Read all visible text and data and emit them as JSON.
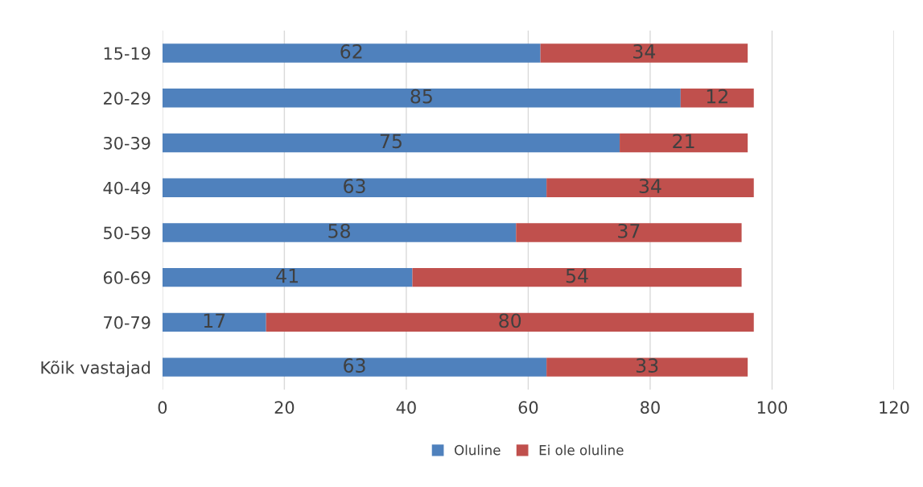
{
  "chart_data": {
    "type": "bar",
    "orientation": "horizontal",
    "stacked": true,
    "categories": [
      "15-19",
      "20-29",
      "30-39",
      "40-49",
      "50-59",
      "60-69",
      "70-79",
      "Kõik vastajad"
    ],
    "series": [
      {
        "name": "Oluline",
        "color": "#4f81bd",
        "values": [
          62,
          85,
          75,
          63,
          58,
          41,
          17,
          63
        ]
      },
      {
        "name": "Ei ole oluline",
        "color": "#c0504d",
        "values": [
          34,
          12,
          21,
          34,
          37,
          54,
          80,
          33
        ]
      }
    ],
    "xlim": [
      0,
      120
    ],
    "xticks": [
      0,
      20,
      40,
      60,
      80,
      100,
      120
    ],
    "grid": "x",
    "legend": "bottom",
    "data_labels": true
  }
}
